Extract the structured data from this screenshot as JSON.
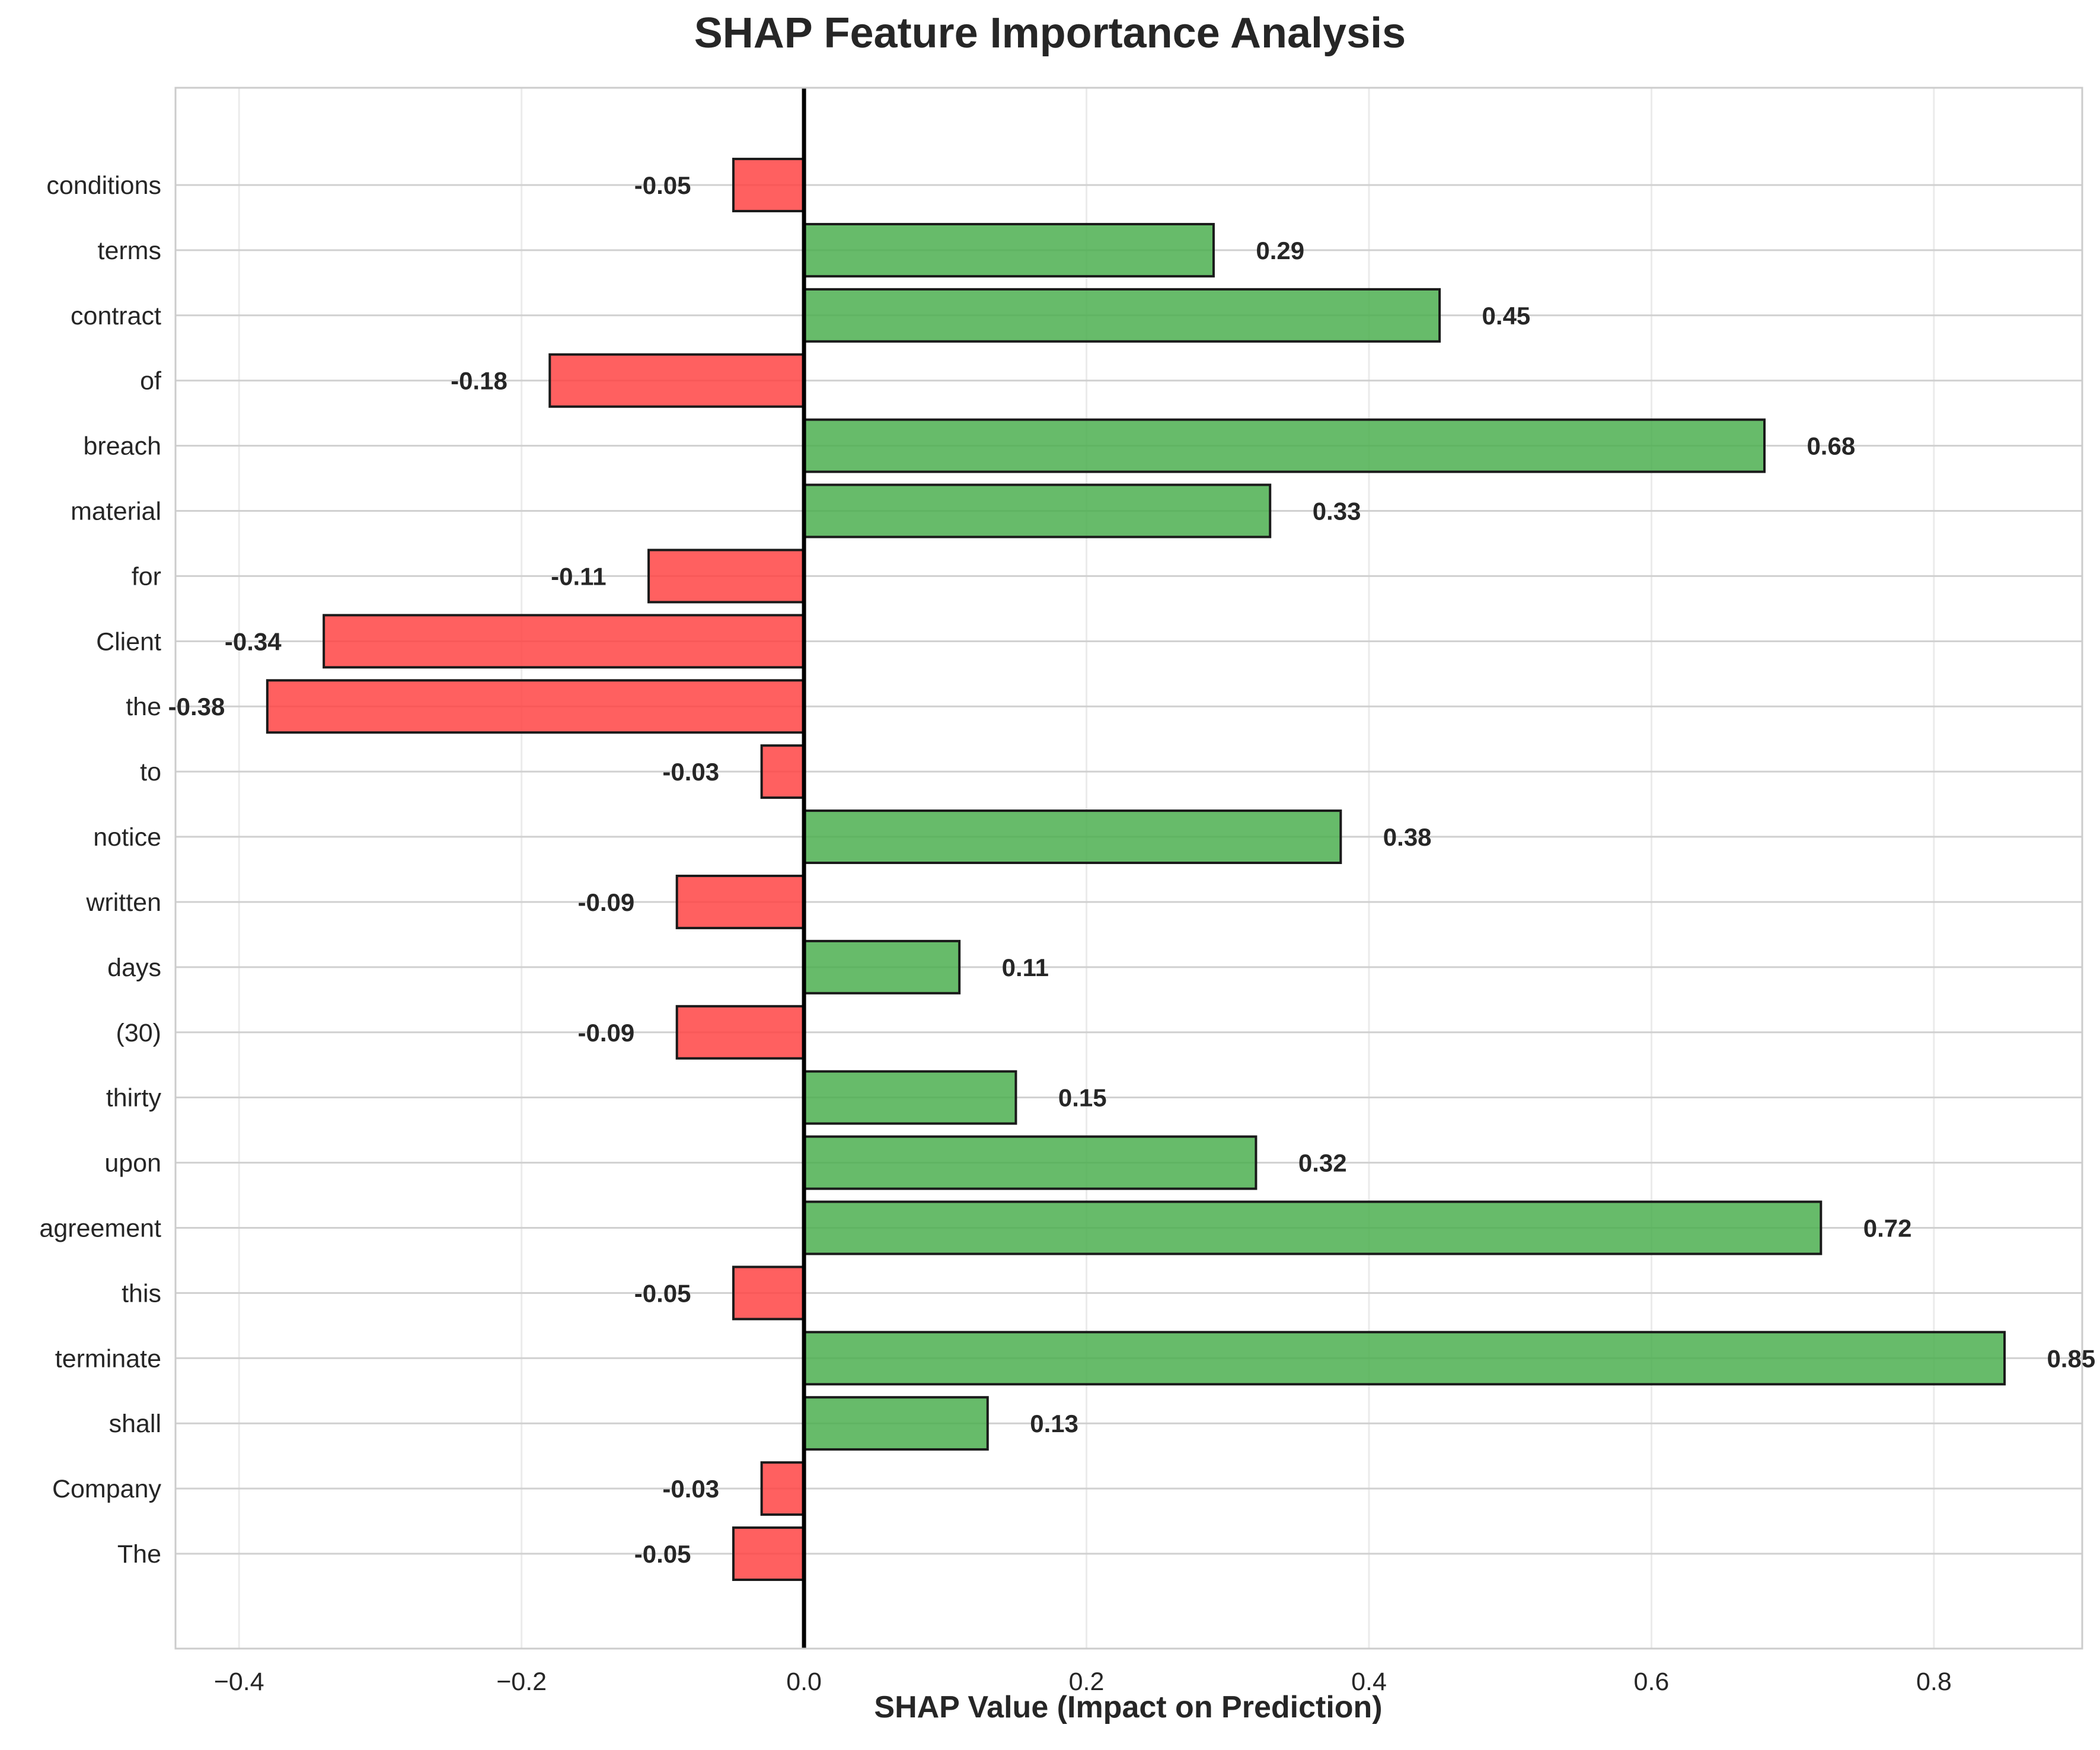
{
  "chart_data": {
    "type": "bar",
    "orientation": "horizontal",
    "title": "SHAP Feature Importance Analysis",
    "xlabel": "SHAP Value (Impact on Prediction)",
    "ylabel": "",
    "xlim": [
      -0.445,
      0.905
    ],
    "xticks": [
      -0.4,
      -0.2,
      0.0,
      0.2,
      0.4,
      0.6,
      0.8
    ],
    "xtick_labels": [
      "−0.4",
      "−0.2",
      "0.0",
      "0.2",
      "0.4",
      "0.6",
      "0.8"
    ],
    "grid": true,
    "zero_line": true,
    "categories": [
      "The",
      "Company",
      "shall",
      "terminate",
      "this",
      "agreement",
      "upon",
      "thirty",
      "(30)",
      "days",
      "written",
      "notice",
      "to",
      "the",
      "Client",
      "for",
      "material",
      "breach",
      "of",
      "contract",
      "terms",
      "conditions"
    ],
    "values": [
      -0.05,
      -0.03,
      0.13,
      0.85,
      -0.05,
      0.72,
      0.32,
      0.15,
      -0.09,
      0.11,
      -0.09,
      0.38,
      -0.03,
      -0.38,
      -0.34,
      -0.11,
      0.33,
      0.68,
      -0.18,
      0.45,
      0.29,
      -0.05
    ],
    "value_labels": [
      "-0.05",
      "-0.03",
      "0.13",
      "0.85",
      "-0.05",
      "0.72",
      "0.32",
      "0.15",
      "-0.09",
      "0.11",
      "-0.09",
      "0.38",
      "-0.03",
      "-0.38",
      "-0.34",
      "-0.11",
      "0.33",
      "0.68",
      "-0.18",
      "0.45",
      "0.29",
      "-0.05"
    ],
    "colors": {
      "positive": "#4caf50",
      "negative": "#ff4444",
      "edge": "#1a1a1a",
      "grid": "#d0d0d0",
      "axis_line": "#000000"
    }
  }
}
